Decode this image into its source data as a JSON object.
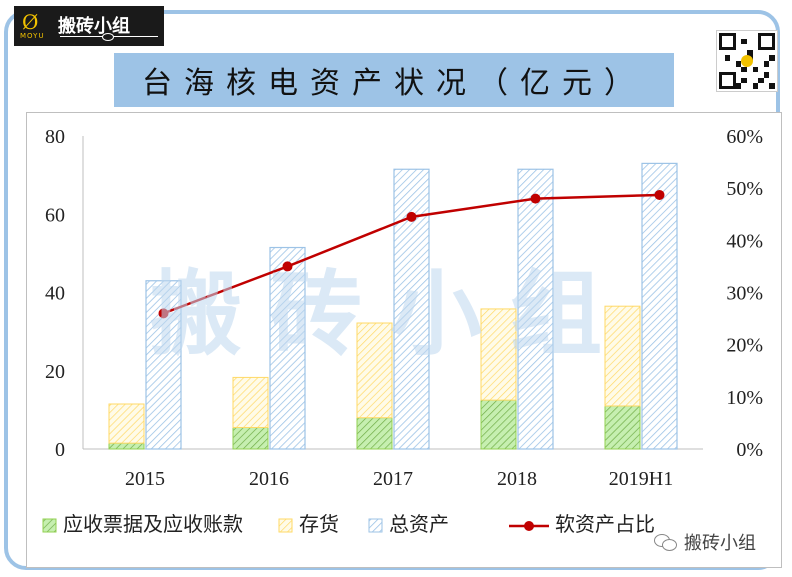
{
  "brand": {
    "logo_mark": "Ø",
    "logo_sub": "MOYU",
    "logo_name": "搬砖小组",
    "watermark": "搬砖小组",
    "wechat_label": "搬砖小组"
  },
  "colors": {
    "frame": "#9dc3e6",
    "title_bg": "#9dc3e6",
    "receivables": "#92d050",
    "inventory": "#ffd966",
    "total_assets": "#9dc3e6",
    "soft_ratio": "#c00000"
  },
  "chart_data": {
    "type": "bar",
    "title": "台海核电资产状况（亿元）",
    "categories": [
      "2015",
      "2016",
      "2017",
      "2018",
      "2019H1"
    ],
    "series": [
      {
        "name": "应收票据及应收账款",
        "kind": "stacked-bar",
        "axis": "left",
        "values": [
          1.5,
          5.5,
          8.0,
          12.5,
          11.0
        ]
      },
      {
        "name": "存货",
        "kind": "stacked-bar",
        "axis": "left",
        "values": [
          10.0,
          12.8,
          24.2,
          23.3,
          25.5
        ]
      },
      {
        "name": "总资产",
        "kind": "bar",
        "axis": "left",
        "values": [
          43.0,
          51.5,
          71.5,
          71.5,
          73.0
        ]
      },
      {
        "name": "软资产占比",
        "kind": "line",
        "axis": "right",
        "values": [
          0.26,
          0.35,
          0.445,
          0.48,
          0.487
        ]
      }
    ],
    "y_left": {
      "min": 0,
      "max": 80,
      "ticks": [
        "0",
        "20",
        "40",
        "60",
        "80"
      ]
    },
    "y_right": {
      "min": 0,
      "max": 0.6,
      "ticks": [
        "0%",
        "10%",
        "20%",
        "30%",
        "40%",
        "50%",
        "60%"
      ]
    },
    "grid": false,
    "legend_position": "bottom"
  }
}
